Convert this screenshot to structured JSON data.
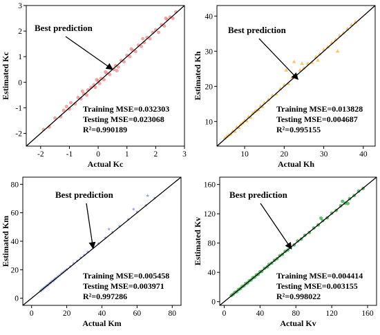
{
  "chart_data": [
    {
      "type": "scatter",
      "title": "",
      "xlabel": "Actual Kc",
      "ylabel": "Estimated Kc",
      "xlim": [
        -2.5,
        3
      ],
      "ylim": [
        -2.5,
        3
      ],
      "xticks": [
        -2,
        -1,
        0,
        1,
        2,
        3
      ],
      "yticks": [
        -2,
        -1,
        0,
        1,
        2,
        3
      ],
      "marker": "circle",
      "color": "#f08080",
      "fit_line": {
        "from": [
          -2.5,
          -2.5
        ],
        "to": [
          3,
          3
        ]
      },
      "annotation": "Best prediction",
      "arrow_tip": [
        0.5,
        0.5
      ],
      "metrics": [
        "Training MSE=0.032303",
        "Testing MSE=0.023068",
        "R²=0.990189"
      ],
      "points": [
        [
          -1.9,
          -1.85
        ],
        [
          -1.7,
          -1.75
        ],
        [
          -1.5,
          -1.4
        ],
        [
          -1.3,
          -1.35
        ],
        [
          -1.2,
          -1.1
        ],
        [
          -1.0,
          -1.05
        ],
        [
          -0.95,
          -0.8
        ],
        [
          -0.8,
          -0.85
        ],
        [
          -0.7,
          -0.6
        ],
        [
          -0.6,
          -0.65
        ],
        [
          -0.5,
          -0.45
        ],
        [
          -0.4,
          -0.5
        ],
        [
          -0.35,
          -0.3
        ],
        [
          -0.25,
          -0.2
        ],
        [
          -0.15,
          -0.1
        ],
        [
          -0.1,
          -0.2
        ],
        [
          0.0,
          0.05
        ],
        [
          0.05,
          -0.05
        ],
        [
          0.1,
          0.15
        ],
        [
          0.2,
          0.1
        ],
        [
          0.3,
          0.35
        ],
        [
          0.4,
          0.3
        ],
        [
          0.45,
          0.55
        ],
        [
          0.55,
          0.5
        ],
        [
          0.6,
          0.65
        ],
        [
          0.7,
          0.6
        ],
        [
          0.8,
          0.85
        ],
        [
          0.9,
          0.8
        ],
        [
          1.0,
          1.05
        ],
        [
          1.1,
          1.0
        ],
        [
          1.2,
          1.25
        ],
        [
          1.3,
          1.2
        ],
        [
          1.4,
          1.45
        ],
        [
          1.5,
          1.4
        ],
        [
          1.6,
          1.55
        ],
        [
          1.7,
          1.75
        ],
        [
          1.8,
          1.7
        ],
        [
          1.9,
          1.95
        ],
        [
          2.0,
          2.05
        ],
        [
          2.1,
          1.95
        ],
        [
          2.2,
          2.25
        ],
        [
          2.3,
          2.2
        ],
        [
          2.4,
          2.45
        ],
        [
          2.5,
          2.55
        ],
        [
          2.6,
          2.5
        ],
        [
          2.7,
          2.75
        ],
        [
          -1.1,
          -0.95
        ],
        [
          0.25,
          0.4
        ],
        [
          1.15,
          1.3
        ],
        [
          -0.55,
          -0.35
        ],
        [
          0.65,
          0.45
        ],
        [
          1.55,
          1.7
        ],
        [
          2.35,
          2.5
        ],
        [
          -0.05,
          0.1
        ]
      ]
    },
    {
      "type": "scatter",
      "title": "",
      "xlabel": "Actual Kh",
      "ylabel": "Estimated Kh",
      "xlim": [
        3,
        43
      ],
      "ylim": [
        3,
        43
      ],
      "xticks": [
        10,
        20,
        30,
        40
      ],
      "yticks": [
        10,
        20,
        30,
        40
      ],
      "marker": "triangle",
      "color": "#f5b942",
      "fit_line": {
        "from": [
          3,
          3
        ],
        "to": [
          43,
          43
        ]
      },
      "annotation": "Best prediction",
      "arrow_tip": [
        23.5,
        22
      ],
      "metrics": [
        "Training MSE=0.013828",
        "Testing MSE=0.004687",
        "R²=0.995155"
      ],
      "points": [
        [
          5,
          5.3
        ],
        [
          5.5,
          5.8
        ],
        [
          6,
          6.2
        ],
        [
          6.5,
          6.4
        ],
        [
          7,
          7.3
        ],
        [
          7.5,
          7.2
        ],
        [
          8,
          8.4
        ],
        [
          8.5,
          8.3
        ],
        [
          9,
          9.2
        ],
        [
          9.5,
          9.6
        ],
        [
          10,
          10.3
        ],
        [
          10.5,
          10.2
        ],
        [
          11,
          11.4
        ],
        [
          11.5,
          11.2
        ],
        [
          12,
          12.3
        ],
        [
          12.5,
          12.8
        ],
        [
          13,
          13.2
        ],
        [
          13.5,
          13.4
        ],
        [
          14,
          14.5
        ],
        [
          14.5,
          14.2
        ],
        [
          15,
          15.3
        ],
        [
          16,
          16.2
        ],
        [
          17,
          17.4
        ],
        [
          18,
          17.8
        ],
        [
          19,
          19.3
        ],
        [
          20,
          20.4
        ],
        [
          21,
          20.8
        ],
        [
          22,
          22.5
        ],
        [
          23,
          23.2
        ],
        [
          24,
          24.6
        ],
        [
          25,
          25.2
        ],
        [
          26,
          26.5
        ],
        [
          27,
          26.8
        ],
        [
          28,
          28.4
        ],
        [
          29,
          29.2
        ],
        [
          30,
          30.5
        ],
        [
          31,
          31.2
        ],
        [
          32,
          32.4
        ],
        [
          33,
          33.3
        ],
        [
          34,
          34.5
        ],
        [
          35,
          35.2
        ],
        [
          36,
          36.4
        ],
        [
          37,
          37.5
        ],
        [
          38,
          38.3
        ],
        [
          20.5,
          24.6
        ],
        [
          22.5,
          27
        ],
        [
          28.5,
          27.4
        ],
        [
          33.5,
          30
        ],
        [
          24.5,
          26.5
        ]
      ]
    },
    {
      "type": "scatter",
      "title": "",
      "xlabel": "Actual Km",
      "ylabel": "Estimated Km",
      "xlim": [
        -5,
        85
      ],
      "ylim": [
        -5,
        85
      ],
      "xticks": [
        0,
        20,
        40,
        60,
        80
      ],
      "yticks": [
        0,
        20,
        40,
        60,
        80
      ],
      "marker": "star",
      "color": "#7b8fd4",
      "fit_line": {
        "from": [
          -5,
          -5
        ],
        "to": [
          85,
          85
        ]
      },
      "annotation": "Best prediction",
      "arrow_tip": [
        35,
        35
      ],
      "metrics": [
        "Training MSE=0.005458",
        "Testing MSE=0.003971",
        "R²=0.997286"
      ],
      "points": [
        [
          5,
          5.3
        ],
        [
          5.5,
          5.2
        ],
        [
          6,
          6.3
        ],
        [
          6.5,
          6.4
        ],
        [
          7,
          7.2
        ],
        [
          7.5,
          7.6
        ],
        [
          8,
          8.1
        ],
        [
          8.5,
          8.7
        ],
        [
          9,
          9.1
        ],
        [
          9.5,
          9.4
        ],
        [
          10,
          10.2
        ],
        [
          10.5,
          10.6
        ],
        [
          11,
          11.1
        ],
        [
          11.5,
          11.8
        ],
        [
          12,
          12.2
        ],
        [
          12.5,
          12.4
        ],
        [
          13,
          13.3
        ],
        [
          13.5,
          13.6
        ],
        [
          14,
          14.2
        ],
        [
          15,
          15.3
        ],
        [
          16,
          16.1
        ],
        [
          17,
          17.4
        ],
        [
          18,
          18.2
        ],
        [
          19,
          19.3
        ],
        [
          20,
          20.2
        ],
        [
          22,
          22.3
        ],
        [
          24,
          24.4
        ],
        [
          26,
          26.2
        ],
        [
          28,
          28.5
        ],
        [
          30,
          30.2
        ],
        [
          32,
          32.5
        ],
        [
          35,
          35.4
        ],
        [
          38,
          38.3
        ],
        [
          42,
          42.5
        ],
        [
          46,
          46.2
        ],
        [
          50,
          50.5
        ],
        [
          55,
          55.3
        ],
        [
          60,
          60.6
        ],
        [
          65,
          65.2
        ],
        [
          70,
          70.4
        ],
        [
          44,
          48.5
        ],
        [
          58,
          62.5
        ],
        [
          66,
          72
        ]
      ]
    },
    {
      "type": "scatter",
      "title": "",
      "xlabel": "Actual Kv",
      "ylabel": "Estimated Kv",
      "xlim": [
        -5,
        170
      ],
      "ylim": [
        -5,
        170
      ],
      "xticks": [
        0,
        40,
        80,
        120,
        160
      ],
      "yticks": [
        0,
        40,
        80,
        120,
        160
      ],
      "marker": "circle",
      "color": "#22a535",
      "fit_line": {
        "from": [
          -5,
          -5
        ],
        "to": [
          170,
          170
        ]
      },
      "annotation": "Best prediction",
      "arrow_tip": [
        75,
        72
      ],
      "metrics": [
        "Training MSE=0.004414",
        "Testing MSE=0.003155",
        "R²=0.998022"
      ],
      "points": [
        [
          8,
          8.5
        ],
        [
          10,
          10.2
        ],
        [
          12,
          12.8
        ],
        [
          14,
          13.6
        ],
        [
          16,
          16.5
        ],
        [
          18,
          17.8
        ],
        [
          20,
          20.6
        ],
        [
          22,
          21.6
        ],
        [
          24,
          24.8
        ],
        [
          26,
          25.6
        ],
        [
          28,
          28.5
        ],
        [
          30,
          29.6
        ],
        [
          32,
          32.8
        ],
        [
          34,
          33.5
        ],
        [
          36,
          36.5
        ],
        [
          38,
          37.4
        ],
        [
          40,
          40.8
        ],
        [
          42,
          41.5
        ],
        [
          45,
          45.6
        ],
        [
          48,
          47.5
        ],
        [
          50,
          50.8
        ],
        [
          53,
          52.6
        ],
        [
          56,
          56.5
        ],
        [
          59,
          58.6
        ],
        [
          62,
          62.8
        ],
        [
          65,
          64.5
        ],
        [
          68,
          68.6
        ],
        [
          71,
          70.5
        ],
        [
          74,
          74.6
        ],
        [
          78,
          77.5
        ],
        [
          82,
          82.8
        ],
        [
          86,
          85.5
        ],
        [
          90,
          90.6
        ],
        [
          95,
          94.5
        ],
        [
          100,
          100.6
        ],
        [
          105,
          104.8
        ],
        [
          110,
          110.6
        ],
        [
          115,
          114.5
        ],
        [
          120,
          120.8
        ],
        [
          125,
          124.6
        ],
        [
          130,
          131
        ],
        [
          135,
          134.5
        ],
        [
          140,
          140.6
        ],
        [
          145,
          144.8
        ],
        [
          150,
          151
        ],
        [
          155,
          154.5
        ],
        [
          108,
          114
        ],
        [
          132,
          137
        ],
        [
          138,
          134
        ]
      ]
    }
  ]
}
